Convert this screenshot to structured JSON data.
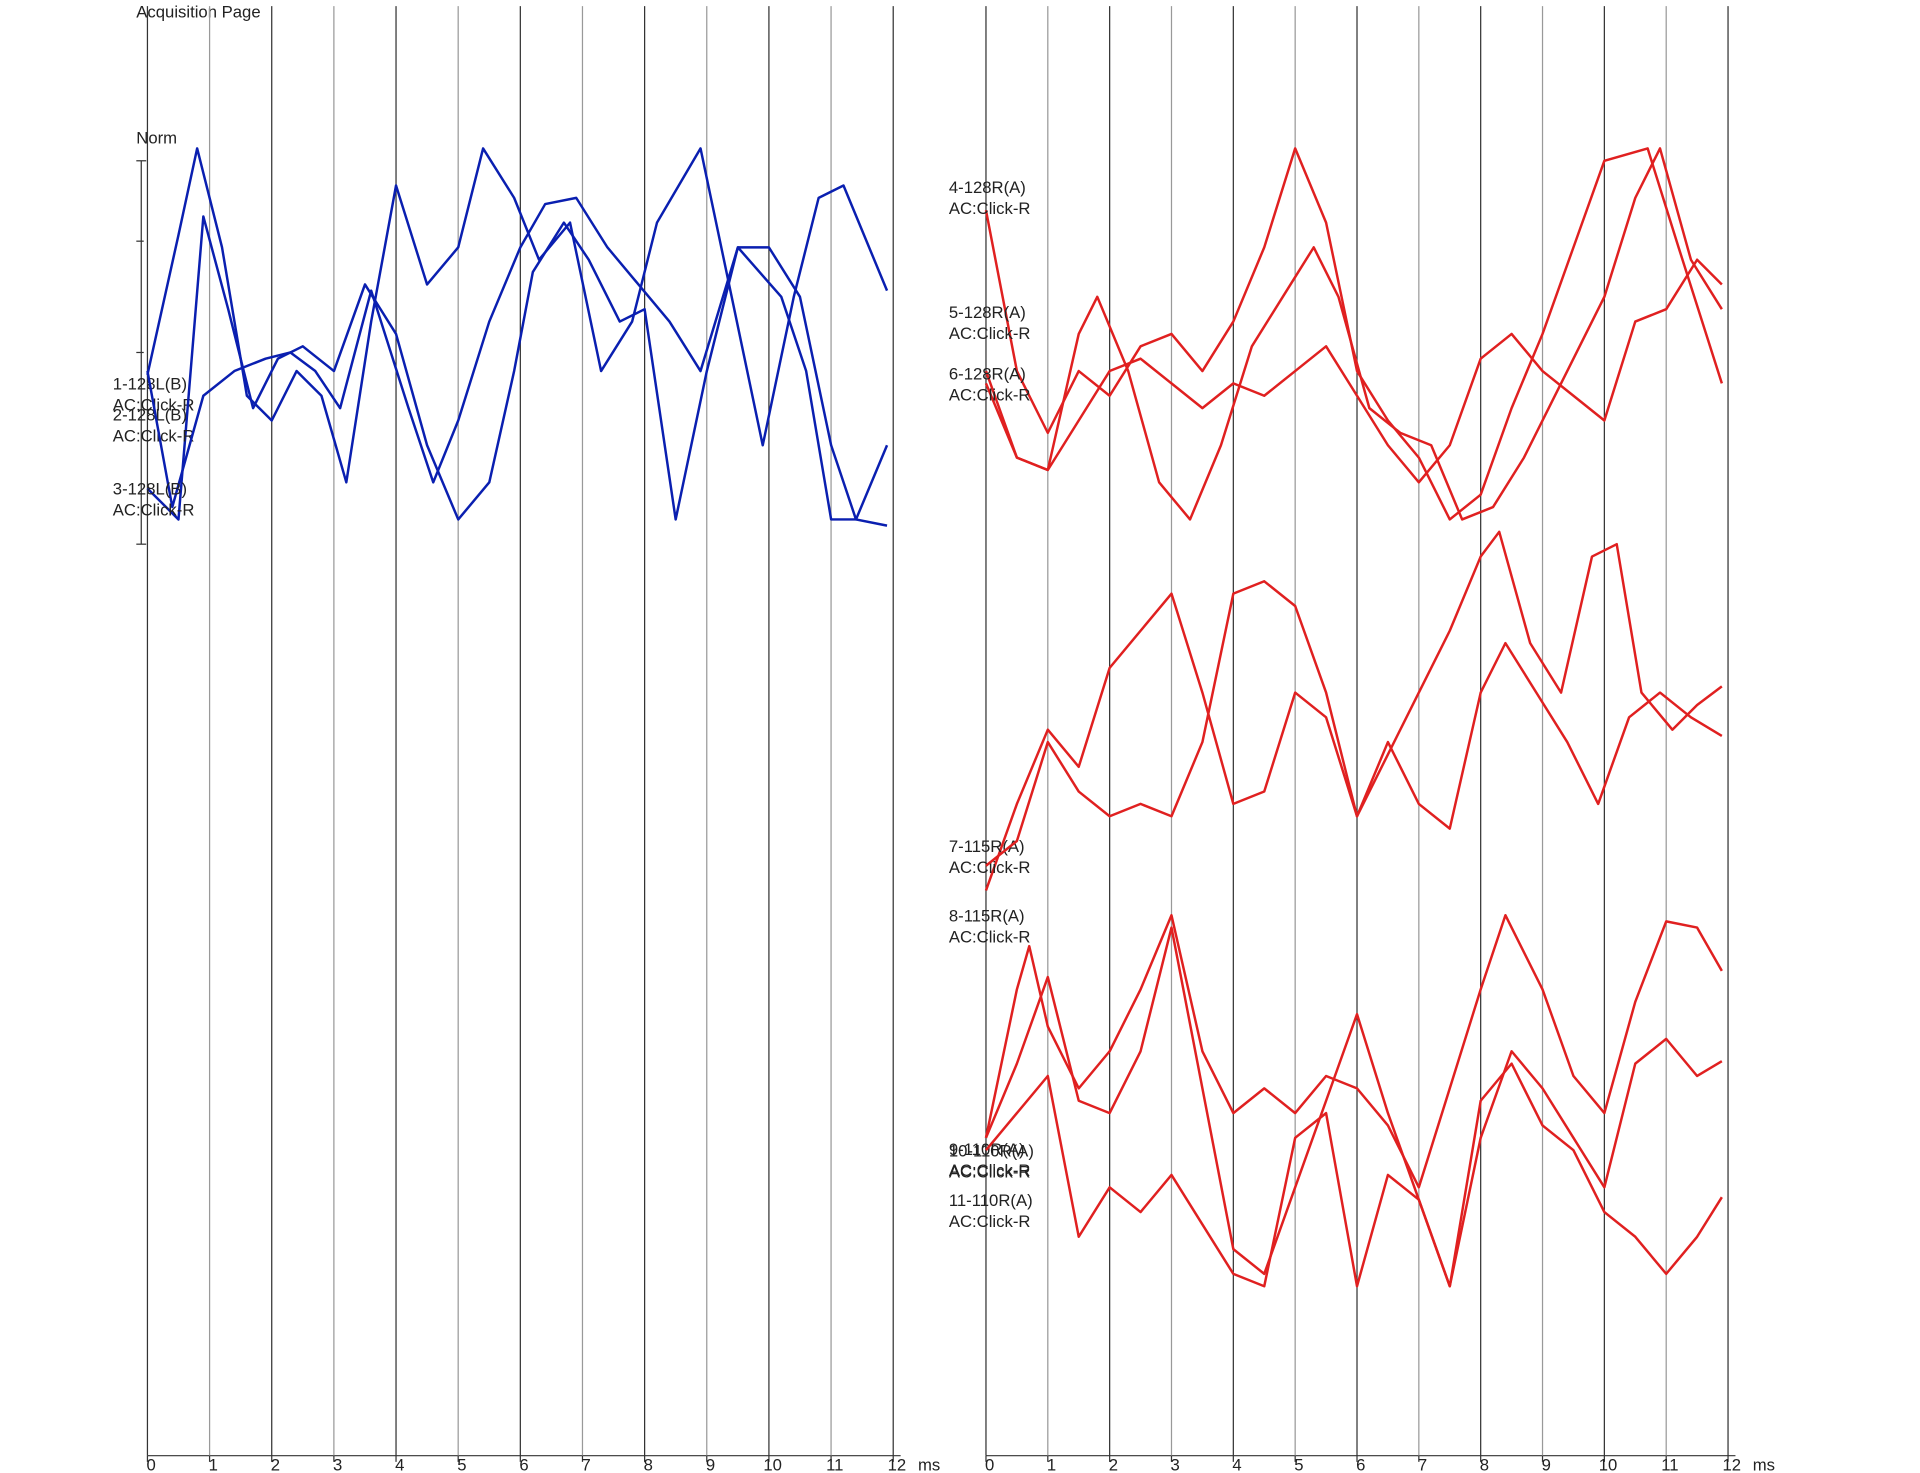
{
  "title": "Acquisition Page",
  "scale_label": "Norm",
  "chart_data": [
    {
      "type": "line",
      "x_unit": "ms",
      "xlim": [
        0,
        12
      ],
      "xticks": [
        0,
        1,
        2,
        3,
        4,
        5,
        6,
        7,
        8,
        9,
        10,
        11,
        12
      ],
      "ylim": [
        1177,
        0
      ],
      "grid": true,
      "series": [
        {
          "name": "1-128L(B)",
          "stimulus": "AC:Click-R",
          "color": "#0a1fb0",
          "x": [
            0,
            0.5,
            0.8,
            1.2,
            1.6,
            2.0,
            2.4,
            2.8,
            3.2,
            3.6,
            4.0,
            4.5,
            5.0,
            5.4,
            5.9,
            6.3,
            6.8,
            7.3,
            7.8,
            8.2,
            8.9,
            9.4,
            9.9,
            10.4,
            10.8,
            11.2,
            11.9
          ],
          "values": [
            303,
            190,
            120,
            200,
            320,
            340,
            300,
            320,
            390,
            260,
            150,
            230,
            200,
            120,
            160,
            210,
            180,
            300,
            260,
            180,
            120,
            240,
            360,
            240,
            160,
            150,
            235
          ]
        },
        {
          "name": "2-128L(B)",
          "stimulus": "AC:Click-R",
          "color": "#0a1fb0",
          "x": [
            0,
            0.5,
            0.9,
            1.3,
            1.7,
            2.1,
            2.5,
            3.0,
            3.5,
            4.0,
            4.5,
            5.0,
            5.5,
            5.9,
            6.2,
            6.7,
            7.1,
            7.6,
            8.0,
            8.5,
            9.0,
            9.5,
            10.0,
            10.5,
            11.0,
            11.4,
            11.9
          ],
          "values": [
            395,
            420,
            175,
            250,
            330,
            290,
            280,
            300,
            230,
            270,
            360,
            420,
            390,
            300,
            220,
            180,
            210,
            260,
            250,
            420,
            300,
            200,
            200,
            240,
            360,
            420,
            425
          ]
        },
        {
          "name": "3-128L(B)",
          "stimulus": "AC:Click-R",
          "color": "#0a1fb0",
          "x": [
            0,
            0.4,
            0.9,
            1.4,
            1.9,
            2.3,
            2.7,
            3.1,
            3.6,
            4.2,
            4.6,
            5.0,
            5.5,
            6.0,
            6.4,
            6.9,
            7.4,
            7.9,
            8.4,
            8.9,
            9.5,
            10.2,
            10.6,
            11.0,
            11.4,
            11.9
          ],
          "values": [
            300,
            410,
            320,
            300,
            290,
            285,
            300,
            330,
            235,
            330,
            390,
            340,
            260,
            200,
            165,
            160,
            200,
            230,
            260,
            300,
            200,
            240,
            300,
            420,
            420,
            360
          ]
        }
      ]
    },
    {
      "type": "line",
      "x_unit": "ms",
      "xlim": [
        0,
        12
      ],
      "xticks": [
        0,
        1,
        2,
        3,
        4,
        5,
        6,
        7,
        8,
        9,
        10,
        11,
        12
      ],
      "ylim": [
        1177,
        0
      ],
      "grid": true,
      "series": [
        {
          "name": "4-128R(A)",
          "stimulus": "AC:Click-R",
          "color": "#e02020",
          "x": [
            0,
            0.5,
            1.0,
            1.5,
            2.0,
            2.5,
            3.0,
            3.5,
            4.0,
            4.5,
            5.0,
            5.5,
            6.0,
            6.5,
            7.0,
            7.5,
            8.0,
            8.5,
            9.0,
            9.5,
            10.0,
            10.7,
            11.2,
            11.9
          ],
          "values": [
            170,
            300,
            350,
            300,
            320,
            280,
            270,
            300,
            260,
            200,
            120,
            180,
            300,
            340,
            370,
            420,
            400,
            330,
            270,
            200,
            130,
            120,
            200,
            310
          ]
        },
        {
          "name": "5-128R(A)",
          "stimulus": "AC:Click-R",
          "color": "#e02020",
          "x": [
            0,
            0.5,
            1.0,
            1.5,
            1.8,
            2.3,
            2.8,
            3.3,
            3.8,
            4.3,
            4.8,
            5.3,
            5.7,
            6.2,
            6.7,
            7.2,
            7.7,
            8.2,
            8.7,
            9.4,
            10.0,
            10.5,
            10.9,
            11.4,
            11.9
          ],
          "values": [
            310,
            370,
            380,
            270,
            240,
            300,
            390,
            420,
            360,
            280,
            240,
            200,
            240,
            330,
            350,
            360,
            420,
            410,
            370,
            300,
            240,
            160,
            120,
            210,
            250
          ]
        },
        {
          "name": "6-128R(A)",
          "stimulus": "AC:Click-R",
          "color": "#e02020",
          "x": [
            0,
            0.5,
            1.0,
            1.5,
            2.0,
            2.5,
            3.0,
            3.5,
            4.0,
            4.5,
            5.0,
            5.5,
            6.0,
            6.5,
            7.0,
            7.5,
            8.0,
            8.5,
            9.0,
            9.5,
            10.0,
            10.5,
            11.0,
            11.5,
            11.9
          ],
          "values": [
            300,
            370,
            380,
            340,
            300,
            290,
            310,
            330,
            310,
            320,
            300,
            280,
            320,
            360,
            390,
            360,
            290,
            270,
            300,
            320,
            340,
            260,
            250,
            210,
            230
          ]
        },
        {
          "name": "7-115R(A)",
          "stimulus": "AC:Click-R",
          "color": "#e02020",
          "x": [
            0,
            0.5,
            1.0,
            1.5,
            2.0,
            2.5,
            3.0,
            3.5,
            4.0,
            4.5,
            5.0,
            5.5,
            6.0,
            6.5,
            7.0,
            7.5,
            8.0,
            8.3,
            8.8,
            9.3,
            9.8,
            10.2,
            10.6,
            11.1,
            11.5,
            11.9
          ],
          "values": [
            720,
            650,
            590,
            620,
            540,
            510,
            480,
            560,
            650,
            640,
            560,
            580,
            660,
            610,
            560,
            510,
            450,
            430,
            520,
            560,
            450,
            440,
            560,
            590,
            570,
            555
          ]
        },
        {
          "name": "8-115R(A)",
          "stimulus": "AC:Click-R",
          "color": "#e02020",
          "x": [
            0,
            0.5,
            1.0,
            1.5,
            2.0,
            2.5,
            3.0,
            3.5,
            4.0,
            4.5,
            5.0,
            5.5,
            6.0,
            6.5,
            7.0,
            7.5,
            8.0,
            8.4,
            8.9,
            9.4,
            9.9,
            10.4,
            10.9,
            11.4,
            11.9
          ],
          "values": [
            700,
            680,
            600,
            640,
            660,
            650,
            660,
            600,
            480,
            470,
            490,
            560,
            660,
            600,
            650,
            670,
            560,
            520,
            560,
            600,
            650,
            580,
            560,
            580,
            595
          ]
        },
        {
          "name": "9-110R(A)",
          "stimulus": "AC:Click-R",
          "color": "#e02020",
          "x": [
            0,
            0.5,
            0.7,
            1.0,
            1.5,
            2.0,
            2.5,
            3.0,
            3.5,
            4.0,
            4.5,
            5.0,
            5.5,
            6.0,
            6.5,
            7.0,
            7.5,
            8.0,
            8.4,
            9.0,
            9.5,
            10.0,
            10.5,
            11.0,
            11.5,
            11.9
          ],
          "values": [
            920,
            800,
            765,
            830,
            880,
            850,
            800,
            740,
            850,
            900,
            880,
            900,
            870,
            880,
            910,
            960,
            880,
            800,
            740,
            800,
            870,
            900,
            810,
            745,
            750,
            785
          ]
        },
        {
          "name": "10-110R(A)",
          "stimulus": "AC:Click-R",
          "color": "#e02020",
          "x": [
            0,
            0.5,
            1.0,
            1.5,
            2.0,
            2.5,
            3.0,
            3.5,
            4.0,
            4.5,
            5.0,
            5.5,
            6.0,
            6.5,
            7.0,
            7.5,
            8.0,
            8.5,
            9.0,
            9.5,
            10.0,
            10.5,
            11.0,
            11.5,
            11.9
          ],
          "values": [
            920,
            860,
            790,
            890,
            900,
            850,
            750,
            880,
            1010,
            1030,
            960,
            890,
            820,
            900,
            970,
            1040,
            920,
            850,
            880,
            920,
            960,
            860,
            840,
            870,
            858
          ]
        },
        {
          "name": "11-110R(A)",
          "stimulus": "AC:Click-R",
          "color": "#e02020",
          "x": [
            0,
            0.5,
            1.0,
            1.5,
            2.0,
            2.5,
            3.0,
            3.5,
            4.0,
            4.5,
            5.0,
            5.5,
            6.0,
            6.5,
            7.0,
            7.5,
            8.0,
            8.5,
            9.0,
            9.5,
            10.0,
            10.5,
            11.0,
            11.5,
            11.9
          ],
          "values": [
            930,
            900,
            870,
            1000,
            960,
            980,
            950,
            990,
            1030,
            1040,
            920,
            900,
            1040,
            950,
            970,
            1040,
            890,
            860,
            910,
            930,
            980,
            1000,
            1030,
            1000,
            968
          ]
        }
      ]
    }
  ]
}
